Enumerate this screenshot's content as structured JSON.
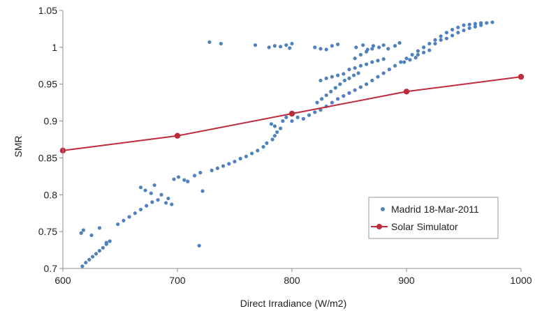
{
  "chart_data": {
    "type": "scatter",
    "title": "",
    "xlabel": "Direct Irradiance (W/m2)",
    "ylabel": "SMR",
    "xlim": [
      600,
      1000
    ],
    "ylim": [
      0.7,
      1.05
    ],
    "x_ticks": [
      "600",
      "700",
      "800",
      "900",
      "1000"
    ],
    "y_ticks": [
      "0.7",
      "0.75",
      "0.8",
      "0.85",
      "0.9",
      "0.95",
      "1",
      "1.05"
    ],
    "grid": false,
    "legend_position": "bottom-right",
    "series": [
      {
        "name": "Madrid 18-Mar-2011",
        "kind": "scatter",
        "color": "#4f81bd",
        "points": [
          [
            617,
            0.703
          ],
          [
            620,
            0.708
          ],
          [
            623,
            0.712
          ],
          [
            626,
            0.716
          ],
          [
            629,
            0.72
          ],
          [
            632,
            0.724
          ],
          [
            635,
            0.728
          ],
          [
            638,
            0.733
          ],
          [
            641,
            0.737
          ],
          [
            616,
            0.748
          ],
          [
            618,
            0.752
          ],
          [
            625,
            0.745
          ],
          [
            632,
            0.755
          ],
          [
            638,
            0.735
          ],
          [
            719,
            0.731
          ],
          [
            648,
            0.76
          ],
          [
            653,
            0.765
          ],
          [
            658,
            0.77
          ],
          [
            663,
            0.775
          ],
          [
            668,
            0.78
          ],
          [
            673,
            0.785
          ],
          [
            678,
            0.79
          ],
          [
            683,
            0.793
          ],
          [
            690,
            0.789
          ],
          [
            695,
            0.787
          ],
          [
            668,
            0.81
          ],
          [
            672,
            0.806
          ],
          [
            677,
            0.802
          ],
          [
            680,
            0.813
          ],
          [
            686,
            0.8
          ],
          [
            692,
            0.795
          ],
          [
            697,
            0.821
          ],
          [
            701,
            0.824
          ],
          [
            706,
            0.82
          ],
          [
            709,
            0.818
          ],
          [
            715,
            0.826
          ],
          [
            722,
            0.805
          ],
          [
            720,
            0.83
          ],
          [
            730,
            0.833
          ],
          [
            735,
            0.836
          ],
          [
            740,
            0.839
          ],
          [
            745,
            0.842
          ],
          [
            750,
            0.845
          ],
          [
            755,
            0.849
          ],
          [
            760,
            0.852
          ],
          [
            765,
            0.856
          ],
          [
            770,
            0.86
          ],
          [
            775,
            0.865
          ],
          [
            778,
            0.87
          ],
          [
            783,
            0.875
          ],
          [
            785,
            0.88
          ],
          [
            787,
            0.885
          ],
          [
            785,
            0.893
          ],
          [
            782,
            0.896
          ],
          [
            790,
            0.89
          ],
          [
            792,
            0.9
          ],
          [
            795,
            0.905
          ],
          [
            800,
            0.9
          ],
          [
            805,
            0.905
          ],
          [
            810,
            0.903
          ],
          [
            815,
            0.908
          ],
          [
            820,
            0.912
          ],
          [
            825,
            0.915
          ],
          [
            830,
            0.92
          ],
          [
            835,
            0.925
          ],
          [
            840,
            0.93
          ],
          [
            845,
            0.934
          ],
          [
            850,
            0.938
          ],
          [
            855,
            0.942
          ],
          [
            860,
            0.946
          ],
          [
            865,
            0.95
          ],
          [
            870,
            0.955
          ],
          [
            875,
            0.96
          ],
          [
            880,
            0.965
          ],
          [
            885,
            0.97
          ],
          [
            890,
            0.975
          ],
          [
            895,
            0.98
          ],
          [
            900,
            0.985
          ],
          [
            905,
            0.99
          ],
          [
            910,
            0.995
          ],
          [
            915,
            1.0
          ],
          [
            920,
            1.005
          ],
          [
            925,
            1.01
          ],
          [
            930,
            1.015
          ],
          [
            935,
            1.02
          ],
          [
            940,
            1.024
          ],
          [
            945,
            1.027
          ],
          [
            950,
            1.03
          ],
          [
            955,
            1.031
          ],
          [
            960,
            1.032
          ],
          [
            965,
            1.033
          ],
          [
            970,
            1.033
          ],
          [
            975,
            1.034
          ],
          [
            925,
            1.005
          ],
          [
            930,
            1.01
          ],
          [
            935,
            1.012
          ],
          [
            940,
            1.016
          ],
          [
            945,
            1.02
          ],
          [
            950,
            1.023
          ],
          [
            955,
            1.026
          ],
          [
            960,
            1.028
          ],
          [
            965,
            1.03
          ],
          [
            910,
            0.99
          ],
          [
            915,
            0.993
          ],
          [
            920,
            0.996
          ],
          [
            898,
            0.98
          ],
          [
            903,
            0.983
          ],
          [
            908,
            0.986
          ],
          [
            822,
            0.925
          ],
          [
            826,
            0.93
          ],
          [
            830,
            0.935
          ],
          [
            834,
            0.94
          ],
          [
            838,
            0.945
          ],
          [
            842,
            0.95
          ],
          [
            846,
            0.955
          ],
          [
            850,
            0.958
          ],
          [
            854,
            0.962
          ],
          [
            858,
            0.965
          ],
          [
            825,
            0.955
          ],
          [
            830,
            0.958
          ],
          [
            835,
            0.96
          ],
          [
            840,
            0.962
          ],
          [
            845,
            0.964
          ],
          [
            850,
            0.97
          ],
          [
            855,
            0.972
          ],
          [
            860,
            0.975
          ],
          [
            865,
            0.977
          ],
          [
            870,
            0.98
          ],
          [
            875,
            0.982
          ],
          [
            880,
            0.984
          ],
          [
            855,
            0.985
          ],
          [
            860,
            0.99
          ],
          [
            865,
            0.994
          ],
          [
            870,
            0.998
          ],
          [
            728,
            1.007
          ],
          [
            738,
            1.005
          ],
          [
            768,
            1.003
          ],
          [
            780,
            1.0
          ],
          [
            785,
            1.002
          ],
          [
            790,
            1.001
          ],
          [
            795,
            1.003
          ],
          [
            798,
            0.999
          ],
          [
            800,
            1.005
          ],
          [
            820,
            1.0
          ],
          [
            825,
            0.998
          ],
          [
            830,
            0.997
          ],
          [
            835,
            1.002
          ],
          [
            840,
            1.004
          ],
          [
            856,
            1.0
          ],
          [
            862,
            1.003
          ],
          [
            866,
            0.997
          ],
          [
            871,
            1.002
          ],
          [
            876,
            1.0
          ],
          [
            880,
            1.003
          ],
          [
            884,
            0.998
          ],
          [
            890,
            1.002
          ],
          [
            894,
            1.006
          ]
        ]
      },
      {
        "name": "Solar Simulator",
        "kind": "line-markers",
        "color": "#be2a3c",
        "points": [
          [
            600,
            0.86
          ],
          [
            700,
            0.88
          ],
          [
            800,
            0.91
          ],
          [
            900,
            0.94
          ],
          [
            1000,
            0.96
          ]
        ]
      }
    ]
  }
}
